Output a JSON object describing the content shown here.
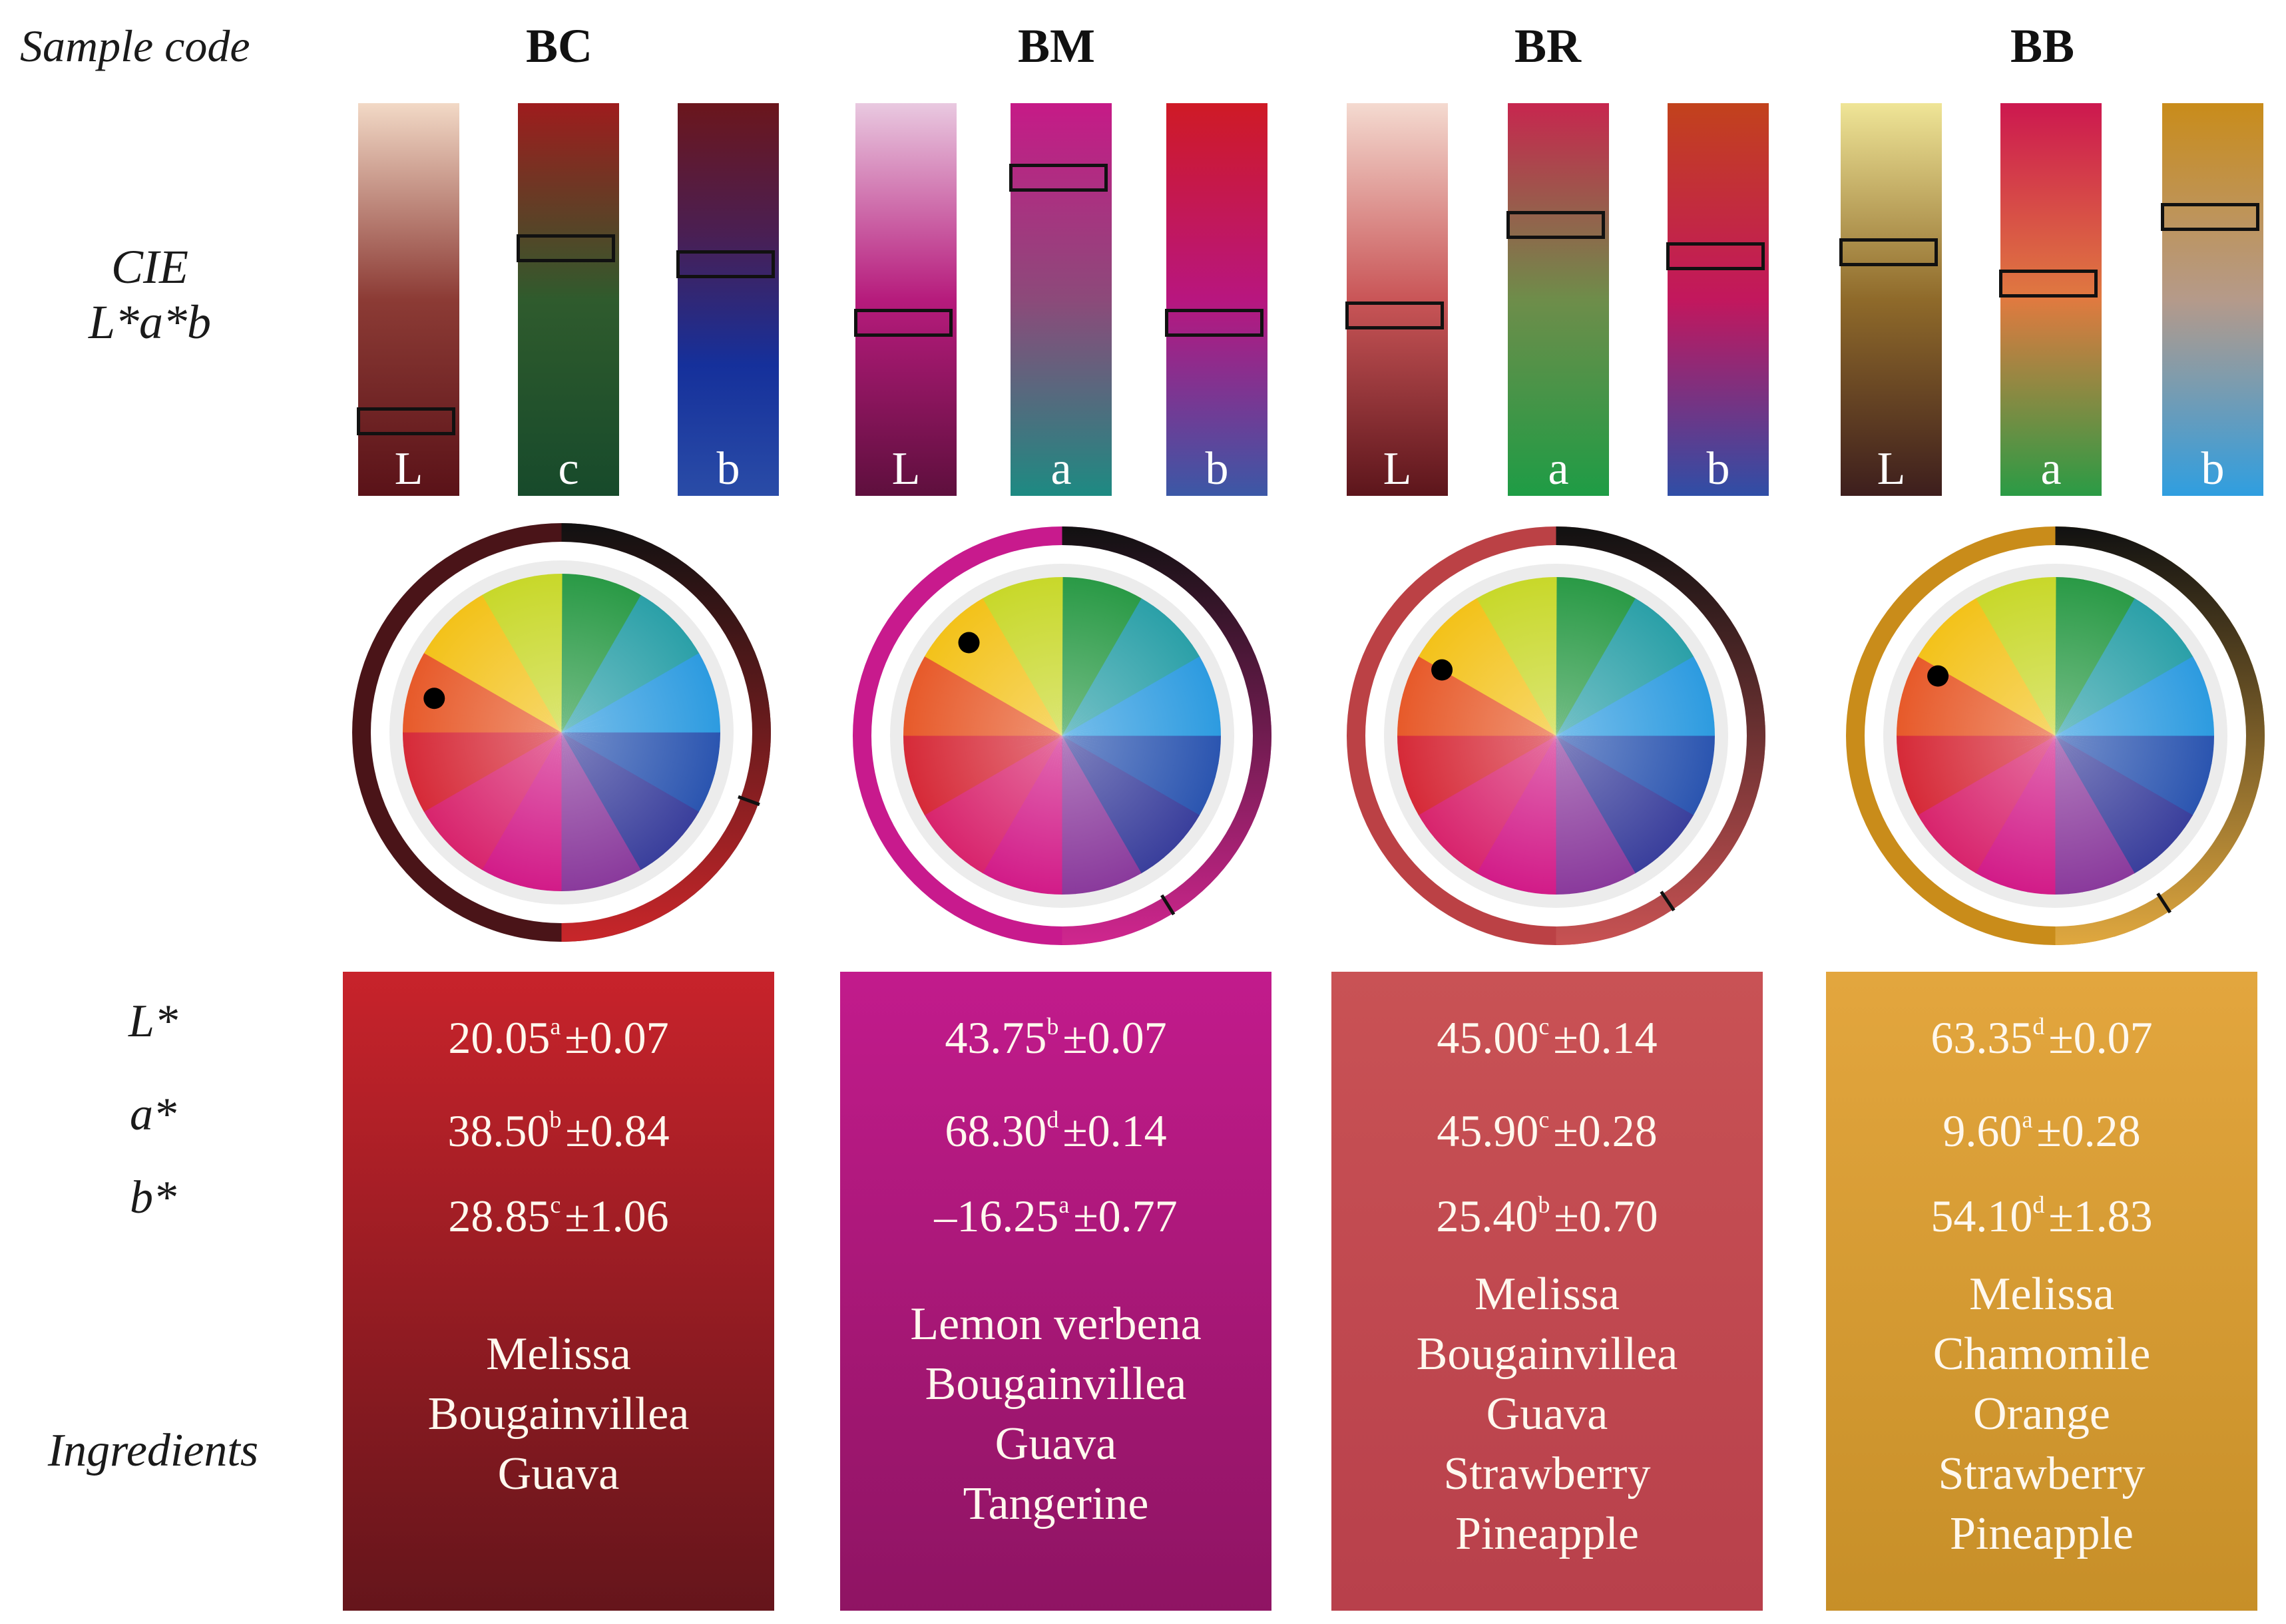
{
  "row_labels": {
    "sample_code": "Sample code",
    "cie_line1": "CIE",
    "cie_line2": "L*a*b",
    "l": "L*",
    "a": "a*",
    "b": "b*",
    "ingredients": "Ingredients"
  },
  "samples": [
    {
      "code": "BC",
      "bars": [
        {
          "letter": "L",
          "colors": [
            "#f2d9c6",
            "#8c3b35",
            "#5a1218"
          ],
          "marker_fraction": 0.81
        },
        {
          "letter": "c",
          "colors": [
            "#9e1c1d",
            "#2f5b2d",
            "#174a2b"
          ],
          "marker_fraction": 0.37
        },
        {
          "letter": "b",
          "colors": [
            "#6b161c",
            "#4a1f53",
            "#15309b",
            "#2a4ca7"
          ],
          "marker_fraction": 0.41
        }
      ],
      "wheel": {
        "ring_colors": [
          "#4a1418",
          "#c8262a"
        ],
        "dot_angle_deg": 195,
        "pointer_angle_deg": 110
      },
      "panel_colors": [
        "#c8232b",
        "#65151b"
      ],
      "l_value": "20.05",
      "l_sup": "a",
      "l_sd": "±0.07",
      "a_value": "38.50",
      "a_sup": "b",
      "a_sd": "±0.84",
      "b_value": "28.85",
      "b_sup": "c",
      "b_sd": "±1.06",
      "ingredients": [
        "Melissa",
        "Bougainvillea",
        "Guava"
      ]
    },
    {
      "code": "BM",
      "bars": [
        {
          "letter": "L",
          "colors": [
            "#e9c9e0",
            "#b61b7c",
            "#5e0f3d"
          ],
          "marker_fraction": 0.56
        },
        {
          "letter": "a",
          "colors": [
            "#c61a87",
            "#8c4a7a",
            "#1d8a82"
          ],
          "marker_fraction": 0.19
        },
        {
          "letter": "b",
          "colors": [
            "#cf1a25",
            "#b8167f",
            "#3b58a6"
          ],
          "marker_fraction": 0.56
        }
      ],
      "wheel": {
        "ring_colors": [
          "#c81a8d",
          "#d0268f"
        ],
        "dot_angle_deg": 225,
        "pointer_angle_deg": 148
      },
      "panel_colors": [
        "#c21b8c",
        "#8f1463"
      ],
      "l_value": "43.75",
      "l_sup": "b",
      "l_sd": "±0.07",
      "a_value": "68.30",
      "a_sup": "d",
      "a_sd": "±0.14",
      "b_value": "–16.25",
      "b_sup": "a",
      "b_sd": "±0.77",
      "ingredients": [
        "Lemon verbena",
        "Bougainvillea",
        "Guava",
        "Tangerine"
      ]
    },
    {
      "code": "BR",
      "bars": [
        {
          "letter": "L",
          "colors": [
            "#f4dad0",
            "#c95557",
            "#5c151b"
          ],
          "marker_fraction": 0.54
        },
        {
          "letter": "a",
          "colors": [
            "#c7264e",
            "#6e8d4a",
            "#1e9c45"
          ],
          "marker_fraction": 0.31
        },
        {
          "letter": "b",
          "colors": [
            "#c2421c",
            "#c2175d",
            "#2f4ea6"
          ],
          "marker_fraction": 0.39
        }
      ],
      "wheel": {
        "ring_colors": [
          "#bb4145",
          "#c85253"
        ],
        "dot_angle_deg": 210,
        "pointer_angle_deg": 146
      },
      "panel_colors": [
        "#c95255",
        "#b8404b"
      ],
      "l_value": "45.00",
      "l_sup": "c",
      "l_sd": "±0.14",
      "a_value": "45.90",
      "a_sup": "c",
      "a_sd": "±0.28",
      "b_value": "25.40",
      "b_sup": "b",
      "b_sd": "±0.70",
      "ingredients": [
        "Melissa",
        "Bougainvillea",
        "Guava",
        "Strawberry",
        "Pineapple"
      ]
    },
    {
      "code": "BB",
      "bars": [
        {
          "letter": "L",
          "colors": [
            "#efe597",
            "#8f6a2a",
            "#3d1e1d"
          ],
          "marker_fraction": 0.38
        },
        {
          "letter": "a",
          "colors": [
            "#cc184f",
            "#e07a40",
            "#2a9b45"
          ],
          "marker_fraction": 0.46
        },
        {
          "letter": "b",
          "colors": [
            "#c98c1a",
            "#b59a8a",
            "#2f9ee0"
          ],
          "marker_fraction": 0.29
        }
      ],
      "wheel": {
        "ring_colors": [
          "#c98c1a",
          "#e0a83f"
        ],
        "dot_angle_deg": 207,
        "pointer_angle_deg": 147
      },
      "panel_colors": [
        "#e3a63e",
        "#c78f28"
      ],
      "l_value": "63.35",
      "l_sup": "d",
      "l_sd": "±0.07",
      "a_value": "9.60",
      "a_sup": "a",
      "a_sd": "±0.28",
      "b_value": "54.10",
      "b_sup": "d",
      "b_sd": "±1.83",
      "ingredients": [
        "Melissa",
        "Chamomile",
        "Orange",
        "Strawberry",
        "Pineapple"
      ]
    }
  ]
}
